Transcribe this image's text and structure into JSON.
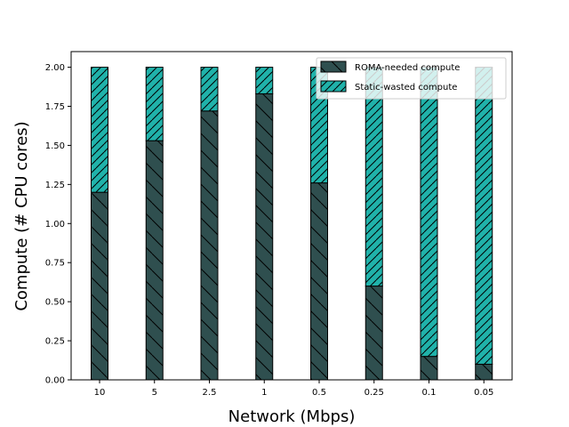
{
  "chart_data": {
    "type": "bar",
    "stacked": true,
    "xlabel": "Network (Mbps)",
    "ylabel": "Compute (# CPU cores)",
    "categories": [
      "10",
      "5",
      "2.5",
      "1",
      "0.5",
      "0.25",
      "0.1",
      "0.05"
    ],
    "ylim": [
      0,
      2.1
    ],
    "yticks": [
      "0.00",
      "0.25",
      "0.50",
      "0.75",
      "1.00",
      "1.25",
      "1.50",
      "1.75",
      "2.00"
    ],
    "grid": false,
    "legend_position": "top-right",
    "series": [
      {
        "name": "ROMA-needed compute",
        "values": [
          1.2,
          1.53,
          1.72,
          1.83,
          1.26,
          0.6,
          0.15,
          0.1
        ],
        "color": "#2f4f4f",
        "hatch": "backslash"
      },
      {
        "name": "Static-wasted compute",
        "values": [
          0.8,
          0.47,
          0.28,
          0.17,
          0.74,
          1.4,
          1.85,
          1.9
        ],
        "color": "#20b2aa",
        "hatch": "slash"
      }
    ]
  }
}
